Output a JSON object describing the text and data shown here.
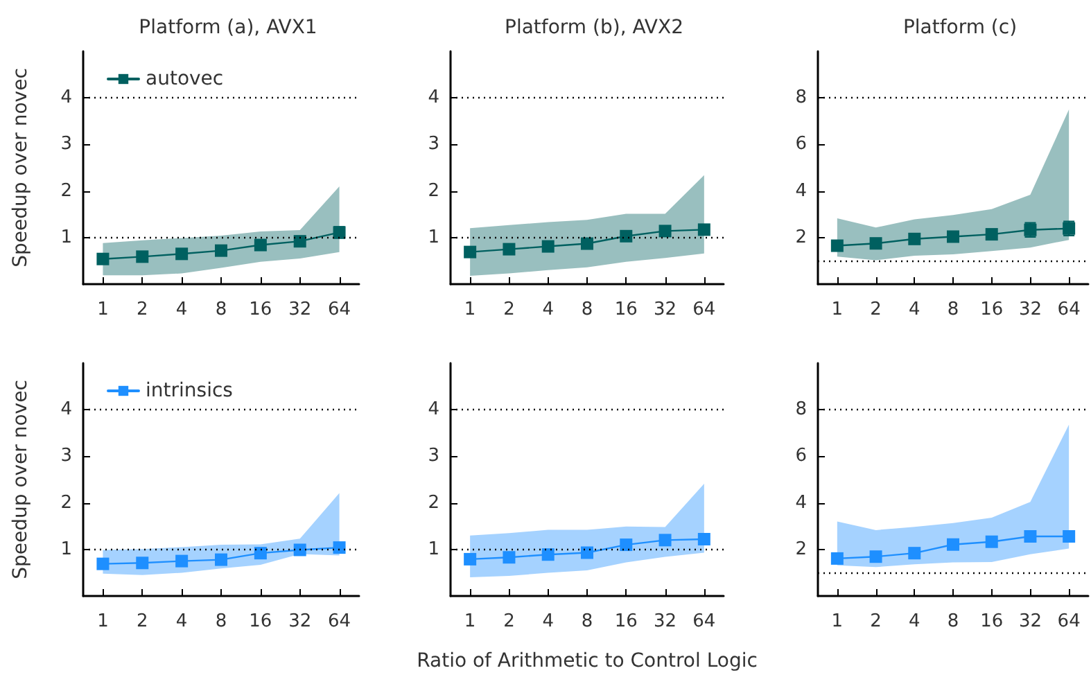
{
  "chart_data": [
    {
      "type": "line",
      "title": "Platform (a), AVX1",
      "ylabel": "Speedup over novec",
      "categories": [
        "1",
        "2",
        "4",
        "8",
        "16",
        "32",
        "64"
      ],
      "ylim": [
        0,
        5
      ],
      "yticks": [
        1,
        2,
        3,
        4
      ],
      "grid": false,
      "legend": "top left",
      "marker": "square",
      "line_style": "solid",
      "ref_lines": [
        {
          "axis": "y",
          "value": 1,
          "color": "#000000",
          "line_style": "dotted"
        },
        {
          "axis": "y",
          "value": 4,
          "color": "#000000",
          "line_style": "dotted"
        }
      ],
      "series": [
        {
          "name": "autovec",
          "color": "#006060",
          "values": [
            0.54,
            0.59,
            0.65,
            0.72,
            0.84,
            0.92,
            1.11
          ],
          "errors": [
            0.05,
            0.05,
            0.05,
            0.05,
            0.05,
            0.05,
            0.12
          ],
          "lower": [
            0.19,
            0.19,
            0.23,
            0.35,
            0.48,
            0.55,
            0.69
          ],
          "upper": [
            0.88,
            0.94,
            0.99,
            1.04,
            1.13,
            1.16,
            2.1
          ]
        }
      ]
    },
    {
      "type": "line",
      "title": "Platform (b), AVX2",
      "categories": [
        "1",
        "2",
        "4",
        "8",
        "16",
        "32",
        "64"
      ],
      "ylim": [
        0,
        5
      ],
      "yticks": [
        1,
        2,
        3,
        4
      ],
      "grid": false,
      "marker": "square",
      "line_style": "solid",
      "ref_lines": [
        {
          "axis": "y",
          "value": 1,
          "color": "#000000",
          "line_style": "dotted"
        },
        {
          "axis": "y",
          "value": 4,
          "color": "#000000",
          "line_style": "dotted"
        }
      ],
      "series": [
        {
          "color": "#006060",
          "values": [
            0.69,
            0.75,
            0.81,
            0.87,
            1.03,
            1.14,
            1.17
          ],
          "errors": [
            0.1,
            0.1,
            0.1,
            0.1,
            0.1,
            0.05,
            0.05
          ],
          "lower": [
            0.18,
            0.23,
            0.3,
            0.36,
            0.48,
            0.56,
            0.66
          ],
          "upper": [
            1.2,
            1.27,
            1.33,
            1.38,
            1.51,
            1.51,
            2.34
          ]
        }
      ]
    },
    {
      "type": "line",
      "title": "Platform (c)",
      "categories": [
        "1",
        "2",
        "4",
        "8",
        "16",
        "32",
        "64"
      ],
      "ylim": [
        0,
        10
      ],
      "yticks": [
        2,
        4,
        6,
        8
      ],
      "grid": false,
      "marker": "square",
      "line_style": "solid",
      "ref_lines": [
        {
          "axis": "y",
          "value": 1,
          "color": "#000000",
          "line_style": "dotted"
        },
        {
          "axis": "y",
          "value": 8,
          "color": "#000000",
          "line_style": "dotted"
        }
      ],
      "series": [
        {
          "color": "#006060",
          "values": [
            1.65,
            1.75,
            1.94,
            2.04,
            2.14,
            2.33,
            2.39
          ],
          "errors": [
            0.15,
            0.15,
            0.15,
            0.15,
            0.2,
            0.3,
            0.3
          ],
          "lower": [
            1.18,
            1.03,
            1.22,
            1.28,
            1.42,
            1.57,
            1.9
          ],
          "upper": [
            2.83,
            2.43,
            2.78,
            2.97,
            3.22,
            3.84,
            7.5
          ]
        }
      ]
    },
    {
      "type": "line",
      "ylabel": "Speedup over novec",
      "categories": [
        "1",
        "2",
        "4",
        "8",
        "16",
        "32",
        "64"
      ],
      "ylim": [
        0,
        5
      ],
      "yticks": [
        1,
        2,
        3,
        4
      ],
      "grid": false,
      "legend": "top left",
      "marker": "square",
      "line_style": "solid",
      "ref_lines": [
        {
          "axis": "y",
          "value": 1,
          "color": "#000000",
          "line_style": "dotted"
        },
        {
          "axis": "y",
          "value": 4,
          "color": "#000000",
          "line_style": "dotted"
        }
      ],
      "series": [
        {
          "name": "intrinsics",
          "color": "#1e8fff",
          "values": [
            0.69,
            0.71,
            0.75,
            0.78,
            0.92,
            0.99,
            1.04
          ],
          "errors": [
            0.05,
            0.05,
            0.05,
            0.05,
            0.05,
            0.05,
            0.05
          ],
          "lower": [
            0.48,
            0.45,
            0.5,
            0.59,
            0.67,
            0.9,
            0.87
          ],
          "upper": [
            0.99,
            1.01,
            1.05,
            1.1,
            1.11,
            1.23,
            2.21
          ]
        }
      ]
    },
    {
      "type": "line",
      "xlabel": "Ratio of Arithmetic to Control Logic",
      "categories": [
        "1",
        "2",
        "4",
        "8",
        "16",
        "32",
        "64"
      ],
      "ylim": [
        0,
        5
      ],
      "yticks": [
        1,
        2,
        3,
        4
      ],
      "grid": false,
      "marker": "square",
      "line_style": "solid",
      "ref_lines": [
        {
          "axis": "y",
          "value": 1,
          "color": "#000000",
          "line_style": "dotted"
        },
        {
          "axis": "y",
          "value": 4,
          "color": "#000000",
          "line_style": "dotted"
        }
      ],
      "series": [
        {
          "color": "#1e8fff",
          "values": [
            0.79,
            0.83,
            0.89,
            0.93,
            1.1,
            1.2,
            1.22
          ],
          "errors": [
            0.1,
            0.1,
            0.1,
            0.1,
            0.05,
            0.05,
            0.05
          ],
          "lower": [
            0.4,
            0.43,
            0.5,
            0.55,
            0.72,
            0.84,
            0.93
          ],
          "upper": [
            1.3,
            1.35,
            1.42,
            1.42,
            1.49,
            1.48,
            2.41
          ]
        }
      ]
    },
    {
      "type": "line",
      "categories": [
        "1",
        "2",
        "4",
        "8",
        "16",
        "32",
        "64"
      ],
      "ylim": [
        0,
        10
      ],
      "yticks": [
        2,
        4,
        6,
        8
      ],
      "grid": false,
      "marker": "square",
      "line_style": "solid",
      "ref_lines": [
        {
          "axis": "y",
          "value": 1,
          "color": "#000000",
          "line_style": "dotted"
        },
        {
          "axis": "y",
          "value": 8,
          "color": "#000000",
          "line_style": "dotted"
        }
      ],
      "series": [
        {
          "color": "#1e8fff",
          "values": [
            1.61,
            1.69,
            1.84,
            2.21,
            2.33,
            2.56,
            2.56
          ],
          "errors": [
            0.1,
            0.1,
            0.1,
            0.15,
            0.15,
            0.2,
            0.2
          ],
          "lower": [
            1.32,
            1.24,
            1.36,
            1.44,
            1.46,
            1.79,
            2.04
          ],
          "upper": [
            3.2,
            2.83,
            2.97,
            3.13,
            3.36,
            4.04,
            7.36
          ]
        }
      ]
    }
  ]
}
